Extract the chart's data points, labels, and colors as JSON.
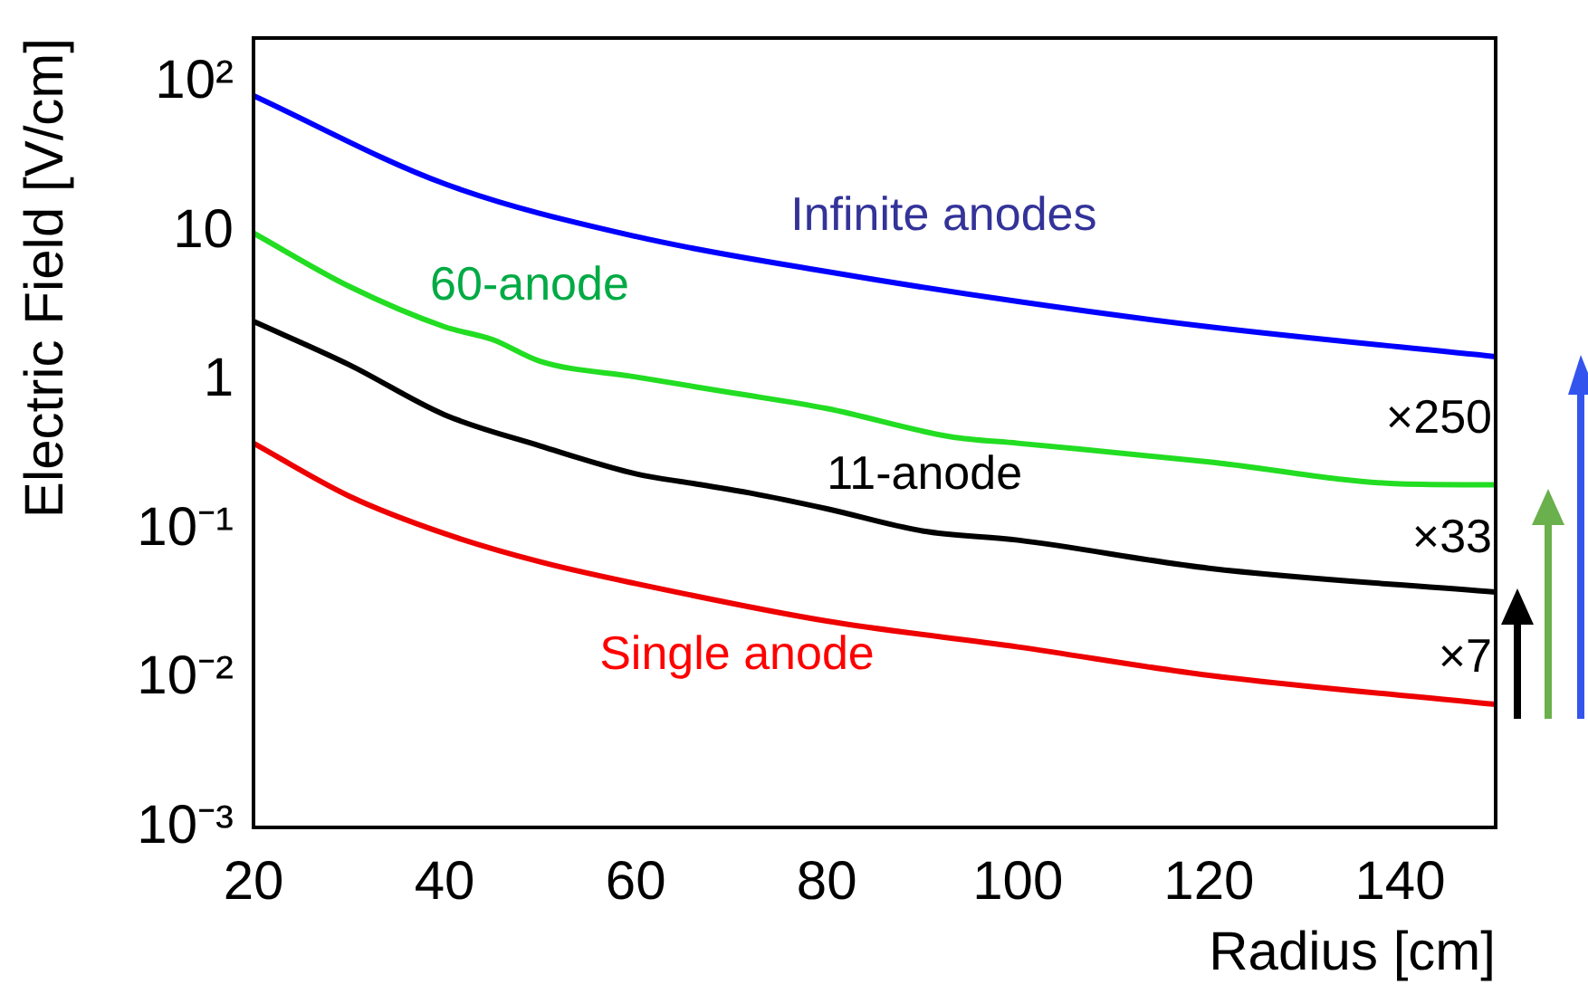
{
  "chart_data": {
    "type": "line",
    "xlabel": "Radius [cm]",
    "ylabel": "Electric Field [V/cm]",
    "xlim": [
      20,
      150
    ],
    "xticks": [
      20,
      40,
      60,
      80,
      100,
      120,
      140
    ],
    "ylim": [
      0.001,
      200
    ],
    "yticks": [
      {
        "value": 100,
        "label": "10²"
      },
      10,
      1,
      {
        "value": 0.1,
        "label": "10⁻¹"
      },
      {
        "value": 0.01,
        "label": "10⁻²"
      },
      {
        "value": 0.001,
        "label": "10⁻³"
      }
    ],
    "log": "y",
    "grid": false,
    "legend": false,
    "marker": "none",
    "line_style": "solid",
    "series": [
      {
        "name": "Infinite anodes",
        "color": "#0000ff",
        "x": [
          20,
          40,
          60,
          80,
          100,
          120,
          150
        ],
        "values": [
          82,
          21,
          9.3,
          5.4,
          3.4,
          2.3,
          1.45
        ]
      },
      {
        "name": "60-anode",
        "color": "#22dd22",
        "x": [
          20,
          30,
          40,
          45,
          50,
          60,
          70,
          80,
          93,
          100,
          120,
          140,
          150
        ],
        "values": [
          9.8,
          4.3,
          2.3,
          1.89,
          1.35,
          1.06,
          0.83,
          0.65,
          0.42,
          0.38,
          0.285,
          0.203,
          0.2
        ]
      },
      {
        "name": "11-anode",
        "color": "#000000",
        "x": [
          20,
          30,
          40,
          50,
          60,
          66,
          72,
          80,
          90,
          100,
          120,
          150
        ],
        "values": [
          2.5,
          1.28,
          0.59,
          0.365,
          0.237,
          0.204,
          0.176,
          0.138,
          0.098,
          0.085,
          0.055,
          0.038
        ]
      },
      {
        "name": "Single anode",
        "color": "#ee0000",
        "x": [
          20,
          30,
          40,
          50,
          60,
          80,
          100,
          120,
          150
        ],
        "values": [
          0.38,
          0.168,
          0.094,
          0.0607,
          0.0434,
          0.0243,
          0.0163,
          0.0105,
          0.0067
        ]
      }
    ],
    "annotations": [
      "×250",
      "×33",
      "×7"
    ]
  }
}
